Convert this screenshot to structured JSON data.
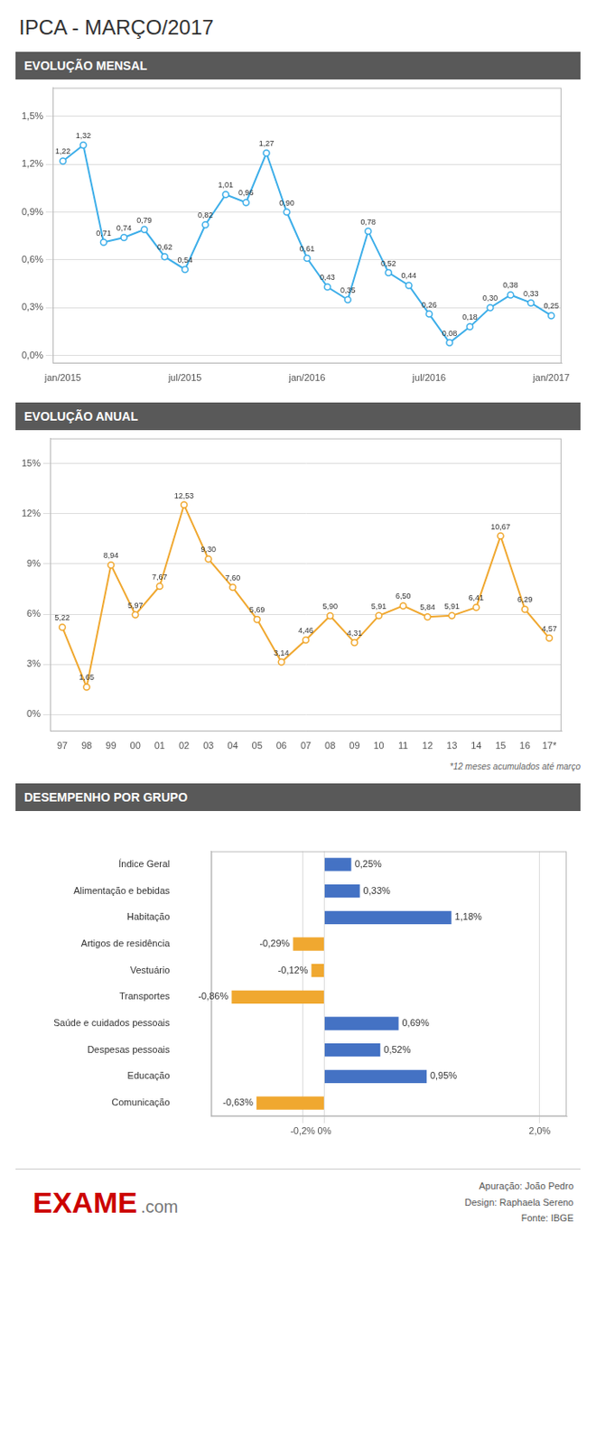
{
  "title": "IPCA - MARÇO/2017",
  "annotations": [
    "EXAME",
    ".com",
    "Apuração: João Pedro",
    "Design: Raphaela Sereno",
    "Fonte: IBGE"
  ],
  "chart_data": [
    {
      "type": "line",
      "title": "EVOLUÇÃO MENSAL",
      "categories": [
        "jan/2015",
        null,
        null,
        null,
        null,
        null,
        "jul/2015",
        null,
        null,
        null,
        null,
        null,
        "jan/2016",
        null,
        null,
        null,
        null,
        null,
        "jul/2016",
        null,
        null,
        null,
        null,
        null,
        "jan/2017"
      ],
      "values": [
        1.22,
        1.32,
        0.71,
        0.74,
        0.79,
        0.62,
        0.54,
        0.82,
        1.01,
        0.96,
        1.27,
        0.9,
        0.61,
        0.43,
        0.35,
        0.78,
        0.52,
        0.44,
        0.26,
        0.08,
        0.18,
        0.3,
        0.38,
        0.33,
        0.25
      ],
      "value_labels": [
        "1,22",
        "1,32",
        "0,71",
        "0,74",
        "0,79",
        "0,62",
        "0,54",
        "0,82",
        "1,01",
        "0,96",
        "1,27",
        "0,90",
        "0,61",
        "0,43",
        "0,35",
        "0,78",
        "0,52",
        "0,44",
        "0,26",
        "0,08",
        "0,18",
        "0,30",
        "0,38",
        "0,33",
        "0,25"
      ],
      "data_labels": true,
      "color": "#3daee9",
      "marker": "circle",
      "ylim": [
        -0.05,
        1.68
      ],
      "yticks": [
        {
          "value": 0.0,
          "label": "0,0%"
        },
        {
          "value": 0.3,
          "label": "0,3%"
        },
        {
          "value": 0.6,
          "label": "0,6%"
        },
        {
          "value": 0.9,
          "label": "0,9%"
        },
        {
          "value": 1.2,
          "label": "1,2%"
        },
        {
          "value": 1.5,
          "label": "1,5%"
        }
      ],
      "grid": true
    },
    {
      "type": "line",
      "title": "EVOLUÇÃO ANUAL",
      "categories": [
        "97",
        "98",
        "99",
        "00",
        "01",
        "02",
        "03",
        "04",
        "05",
        "06",
        "07",
        "08",
        "09",
        "10",
        "11",
        "12",
        "13",
        "14",
        "15",
        "16",
        "17*"
      ],
      "values": [
        5.22,
        1.65,
        8.94,
        5.97,
        7.67,
        12.53,
        9.3,
        7.6,
        5.69,
        3.14,
        4.46,
        5.9,
        4.31,
        5.91,
        6.5,
        5.84,
        5.91,
        6.41,
        10.67,
        6.29,
        4.57
      ],
      "value_labels": [
        "5,22",
        "1,65",
        "8,94",
        "5,97",
        "7,67",
        "12,53",
        "9,30",
        "7,60",
        "5,69",
        "3,14",
        "4,46",
        "5,90",
        "4,31",
        "5,91",
        "6,50",
        "5,84",
        "5,91",
        "6,41",
        "10,67",
        "6,29",
        "4,57"
      ],
      "data_labels": true,
      "color": "#f0a830",
      "marker": "circle",
      "ylim": [
        -1.0,
        16.5
      ],
      "yticks": [
        {
          "value": 0,
          "label": "0%"
        },
        {
          "value": 3,
          "label": "3%"
        },
        {
          "value": 6,
          "label": "6%"
        },
        {
          "value": 9,
          "label": "9%"
        },
        {
          "value": 12,
          "label": "12%"
        },
        {
          "value": 15,
          "label": "15%"
        }
      ],
      "grid": true,
      "annotations": [
        "*12 meses acumulados até março"
      ]
    },
    {
      "type": "bar",
      "title": "DESEMPENHO POR GRUPO",
      "orientation": "horizontal",
      "categories": [
        "Índice Geral",
        "Alimentação e bebidas",
        "Habitação",
        "Artigos de residência",
        "Vestuário",
        "Transportes",
        "Saúde e cuidados pessoais",
        "Despesas pessoais",
        "Educação",
        "Comunicação"
      ],
      "values": [
        0.25,
        0.33,
        1.18,
        -0.29,
        -0.12,
        -0.86,
        0.69,
        0.52,
        0.95,
        -0.63
      ],
      "value_labels": [
        "0,25%",
        "0,33%",
        "1,18%",
        "-0,29%",
        "-0,12%",
        "-0,86%",
        "0,69%",
        "0,52%",
        "0,95%",
        "-0,63%"
      ],
      "data_labels": true,
      "colors": [
        "#4472c4",
        "#4472c4",
        "#4472c4",
        "#f0a830",
        "#f0a830",
        "#f0a830",
        "#4472c4",
        "#4472c4",
        "#4472c4",
        "#f0a830"
      ],
      "xlim": [
        -1.05,
        2.25
      ],
      "xticks": [
        {
          "value": -0.2,
          "label": "-0,2%"
        },
        {
          "value": 0,
          "label": "0%"
        },
        {
          "value": 2.0,
          "label": "2,0%"
        }
      ],
      "grid": true
    }
  ]
}
